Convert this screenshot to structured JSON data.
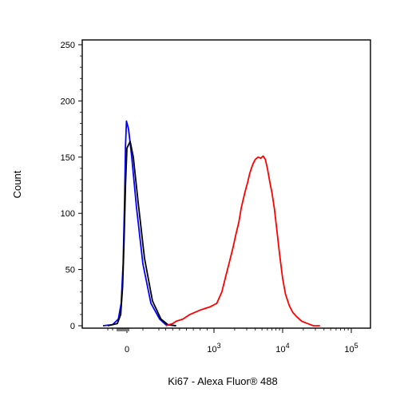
{
  "chart_data": {
    "type": "line",
    "title": "",
    "xlabel": "Ki67 - Alexa Fluor® 488",
    "ylabel": "Count",
    "ylim": [
      0,
      250
    ],
    "y_ticks": [
      "0",
      "50",
      "100",
      "150",
      "200",
      "250"
    ],
    "x_scale": "biexponential",
    "x_ticks": [
      {
        "base": "0",
        "exp": ""
      },
      {
        "base": "10",
        "exp": "3"
      },
      {
        "base": "10",
        "exp": "4"
      },
      {
        "base": "10",
        "exp": "5"
      }
    ],
    "grid": false,
    "legend": "none",
    "series": [
      {
        "color": "#0000ff",
        "points": [
          [
            -500,
            0
          ],
          [
            -300,
            1
          ],
          [
            -180,
            6
          ],
          [
            -120,
            20
          ],
          [
            -80,
            55
          ],
          [
            -50,
            110
          ],
          [
            -30,
            160
          ],
          [
            -10,
            182
          ],
          [
            10,
            175
          ],
          [
            30,
            150
          ],
          [
            60,
            105
          ],
          [
            100,
            55
          ],
          [
            150,
            20
          ],
          [
            210,
            6
          ],
          [
            300,
            1
          ],
          [
            450,
            0
          ]
        ]
      },
      {
        "color": "#000000",
        "points": [
          [
            -400,
            0
          ],
          [
            -200,
            2
          ],
          [
            -130,
            10
          ],
          [
            -90,
            35
          ],
          [
            -60,
            75
          ],
          [
            -30,
            125
          ],
          [
            0,
            158
          ],
          [
            20,
            164
          ],
          [
            40,
            150
          ],
          [
            70,
            110
          ],
          [
            110,
            60
          ],
          [
            160,
            22
          ],
          [
            230,
            6
          ],
          [
            330,
            1
          ],
          [
            450,
            0
          ]
        ]
      },
      {
        "color": "#ff0000",
        "points": [
          [
            300,
            0
          ],
          [
            400,
            2
          ],
          [
            450,
            4
          ],
          [
            550,
            6
          ],
          [
            650,
            10
          ],
          [
            800,
            14
          ],
          [
            950,
            17
          ],
          [
            1100,
            20
          ],
          [
            1300,
            30
          ],
          [
            1500,
            45
          ],
          [
            1700,
            58
          ],
          [
            1900,
            70
          ],
          [
            2100,
            82
          ],
          [
            2300,
            92
          ],
          [
            2500,
            105
          ],
          [
            2800,
            118
          ],
          [
            3100,
            128
          ],
          [
            3300,
            135
          ],
          [
            3500,
            140
          ],
          [
            3700,
            144
          ],
          [
            4000,
            148
          ],
          [
            4400,
            150
          ],
          [
            4800,
            149
          ],
          [
            5200,
            151
          ],
          [
            5600,
            148
          ],
          [
            6000,
            140
          ],
          [
            6500,
            128
          ],
          [
            7000,
            118
          ],
          [
            7600,
            104
          ],
          [
            8200,
            86
          ],
          [
            9000,
            64
          ],
          [
            10000,
            42
          ],
          [
            11000,
            28
          ],
          [
            12500,
            18
          ],
          [
            14000,
            12
          ],
          [
            16000,
            8
          ],
          [
            19000,
            4
          ],
          [
            23000,
            2
          ],
          [
            28000,
            0
          ],
          [
            35000,
            0
          ]
        ]
      }
    ]
  }
}
